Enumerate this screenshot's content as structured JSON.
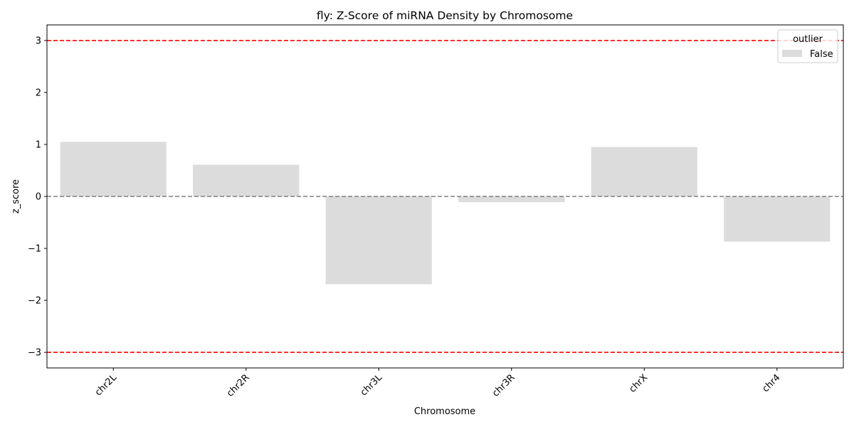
{
  "chart_data": {
    "type": "bar",
    "title": "fly: Z-Score of miRNA Density by Chromosome",
    "xlabel": "Chromosome",
    "ylabel": "z_score",
    "categories": [
      "chr2L",
      "chr2R",
      "chr3L",
      "chr3R",
      "chrX",
      "chr4"
    ],
    "values": [
      1.05,
      0.61,
      -1.69,
      -0.11,
      0.95,
      -0.87
    ],
    "ylim": [
      -3.3,
      3.3
    ],
    "yticks": [
      -3,
      -2,
      -1,
      0,
      1,
      2,
      3
    ],
    "ytick_labels": [
      "−3",
      "−2",
      "−1",
      "0",
      "1",
      "2",
      "3"
    ],
    "bar_color": "#dcdcdc",
    "reference_lines": [
      {
        "y": 3,
        "color": "#ff0000",
        "style": "dashed"
      },
      {
        "y": -3,
        "color": "#ff0000",
        "style": "dashed"
      },
      {
        "y": 0,
        "color": "#808080",
        "style": "dashed"
      }
    ],
    "legend": {
      "title": "outlier",
      "entries": [
        {
          "label": "False",
          "color": "#dcdcdc"
        }
      ],
      "placement": "top-right"
    },
    "grid": false
  }
}
